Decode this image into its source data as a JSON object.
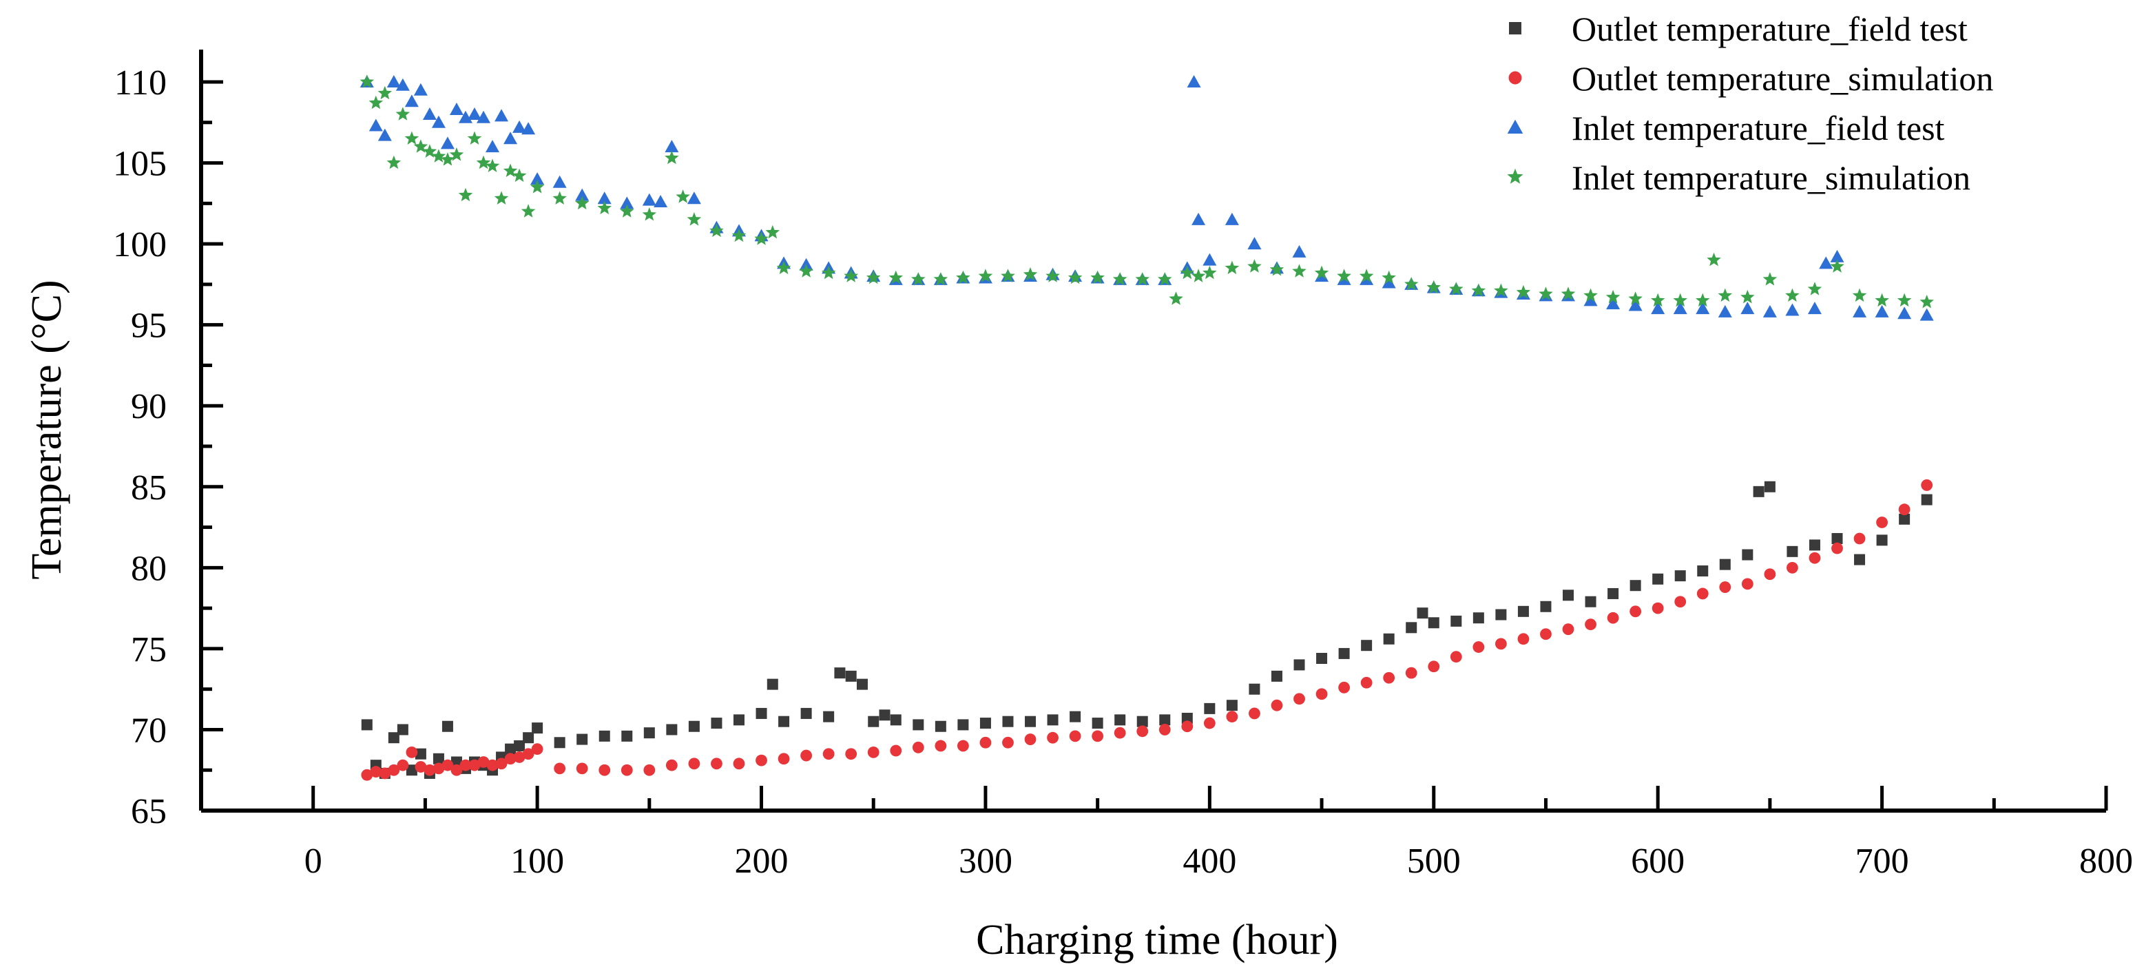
{
  "chart_data": {
    "type": "scatter",
    "title": "",
    "xlabel": "Charging time (hour)",
    "ylabel": "Temperature (°C)",
    "xlim": [
      -50,
      800
    ],
    "ylim": [
      65,
      112
    ],
    "xticks": [
      0,
      100,
      200,
      300,
      400,
      500,
      600,
      700,
      800
    ],
    "yticks": [
      65,
      70,
      75,
      80,
      85,
      90,
      95,
      100,
      105,
      110
    ],
    "legend_position": "top-right",
    "series": [
      {
        "name": "Outlet temperature_field test",
        "marker": "square",
        "color": "#3a3a3a",
        "x": [
          24,
          28,
          32,
          36,
          40,
          44,
          48,
          52,
          56,
          60,
          64,
          68,
          72,
          76,
          80,
          84,
          88,
          92,
          96,
          100,
          110,
          120,
          130,
          140,
          150,
          160,
          170,
          180,
          190,
          200,
          205,
          210,
          220,
          230,
          235,
          240,
          245,
          250,
          255,
          260,
          270,
          280,
          290,
          300,
          310,
          320,
          330,
          340,
          350,
          360,
          370,
          380,
          390,
          400,
          410,
          420,
          430,
          440,
          450,
          460,
          470,
          480,
          490,
          495,
          500,
          510,
          520,
          530,
          540,
          550,
          560,
          570,
          580,
          590,
          600,
          610,
          620,
          630,
          640,
          645,
          650,
          660,
          670,
          680,
          690,
          700,
          710,
          720
        ],
        "y": [
          70.3,
          67.8,
          67.3,
          69.5,
          70.0,
          67.5,
          68.5,
          67.3,
          68.2,
          70.2,
          68.0,
          67.6,
          68.0,
          67.8,
          67.5,
          68.3,
          68.8,
          69.0,
          69.5,
          70.1,
          69.2,
          69.4,
          69.6,
          69.6,
          69.8,
          70.0,
          70.2,
          70.4,
          70.6,
          71.0,
          72.8,
          70.5,
          71.0,
          70.8,
          73.5,
          73.3,
          72.8,
          70.5,
          70.9,
          70.6,
          70.3,
          70.2,
          70.3,
          70.4,
          70.5,
          70.5,
          70.6,
          70.8,
          70.4,
          70.6,
          70.5,
          70.6,
          70.7,
          71.3,
          71.5,
          72.5,
          73.3,
          74.0,
          74.4,
          74.7,
          75.2,
          75.6,
          76.3,
          77.2,
          76.6,
          76.7,
          76.9,
          77.1,
          77.3,
          77.6,
          78.3,
          77.9,
          78.4,
          78.9,
          79.3,
          79.5,
          79.8,
          80.2,
          80.8,
          84.7,
          85.0,
          81.0,
          81.4,
          81.8,
          80.5,
          81.7,
          83.0,
          84.2
        ]
      },
      {
        "name": "Outlet temperature_simulation",
        "marker": "circle",
        "color": "#e8353a",
        "x": [
          24,
          28,
          32,
          36,
          40,
          44,
          48,
          52,
          56,
          60,
          64,
          68,
          72,
          76,
          80,
          84,
          88,
          92,
          96,
          100,
          110,
          120,
          130,
          140,
          150,
          160,
          170,
          180,
          190,
          200,
          210,
          220,
          230,
          240,
          250,
          260,
          270,
          280,
          290,
          300,
          310,
          320,
          330,
          340,
          350,
          360,
          370,
          380,
          390,
          400,
          410,
          420,
          430,
          440,
          450,
          460,
          470,
          480,
          490,
          500,
          510,
          520,
          530,
          540,
          550,
          560,
          570,
          580,
          590,
          600,
          610,
          620,
          630,
          640,
          650,
          660,
          670,
          680,
          690,
          700,
          710,
          720
        ],
        "y": [
          67.2,
          67.4,
          67.3,
          67.5,
          67.8,
          68.6,
          67.7,
          67.5,
          67.6,
          67.8,
          67.5,
          67.8,
          67.8,
          68.0,
          67.8,
          67.9,
          68.2,
          68.3,
          68.5,
          68.8,
          67.6,
          67.6,
          67.5,
          67.5,
          67.5,
          67.8,
          67.9,
          67.9,
          67.9,
          68.1,
          68.2,
          68.4,
          68.5,
          68.5,
          68.6,
          68.7,
          68.9,
          69.0,
          69.0,
          69.2,
          69.2,
          69.4,
          69.5,
          69.6,
          69.6,
          69.8,
          69.9,
          70.0,
          70.2,
          70.4,
          70.8,
          71.0,
          71.5,
          71.9,
          72.2,
          72.6,
          72.9,
          73.2,
          73.5,
          73.9,
          74.5,
          75.1,
          75.3,
          75.6,
          75.9,
          76.2,
          76.5,
          76.9,
          77.3,
          77.5,
          77.9,
          78.4,
          78.8,
          79.0,
          79.6,
          80.0,
          80.6,
          81.2,
          81.8,
          82.8,
          83.6,
          85.1
        ]
      },
      {
        "name": "Inlet temperature_field test",
        "marker": "triangle",
        "color": "#2e6fd6",
        "x": [
          24,
          28,
          32,
          36,
          40,
          44,
          48,
          52,
          56,
          60,
          64,
          68,
          72,
          76,
          80,
          84,
          88,
          92,
          96,
          100,
          110,
          120,
          130,
          140,
          150,
          155,
          160,
          170,
          180,
          190,
          200,
          210,
          220,
          230,
          240,
          250,
          260,
          270,
          280,
          290,
          300,
          310,
          320,
          330,
          340,
          350,
          360,
          370,
          380,
          390,
          393,
          395,
          400,
          410,
          420,
          430,
          440,
          450,
          460,
          470,
          480,
          490,
          500,
          510,
          520,
          530,
          540,
          550,
          560,
          570,
          580,
          590,
          600,
          610,
          620,
          630,
          640,
          650,
          660,
          670,
          675,
          680,
          690,
          700,
          710,
          720
        ],
        "y": [
          110.0,
          107.3,
          106.7,
          110.0,
          109.8,
          108.8,
          109.5,
          108.0,
          107.5,
          106.2,
          108.3,
          107.8,
          108.0,
          107.8,
          106.0,
          107.9,
          106.5,
          107.2,
          107.1,
          104.0,
          103.8,
          103.0,
          102.8,
          102.5,
          102.7,
          102.6,
          106.0,
          102.8,
          101.0,
          100.8,
          100.5,
          98.8,
          98.7,
          98.5,
          98.2,
          98.0,
          97.8,
          97.8,
          97.8,
          97.9,
          97.9,
          98.0,
          98.0,
          98.1,
          98.0,
          97.9,
          97.8,
          97.8,
          97.8,
          98.5,
          110.0,
          101.5,
          99.0,
          101.5,
          100.0,
          98.5,
          99.5,
          98.0,
          97.8,
          97.8,
          97.6,
          97.5,
          97.3,
          97.2,
          97.1,
          97.0,
          96.9,
          96.8,
          96.8,
          96.5,
          96.3,
          96.2,
          96.0,
          96.0,
          96.0,
          95.8,
          96.0,
          95.8,
          95.9,
          96.0,
          98.8,
          99.2,
          95.8,
          95.8,
          95.7,
          95.6
        ]
      },
      {
        "name": "Inlet temperature_simulation",
        "marker": "star",
        "color": "#3aa34a",
        "x": [
          24,
          28,
          32,
          36,
          40,
          44,
          48,
          52,
          56,
          60,
          64,
          68,
          72,
          76,
          80,
          84,
          88,
          92,
          96,
          100,
          110,
          120,
          130,
          140,
          150,
          160,
          165,
          170,
          180,
          190,
          200,
          205,
          210,
          220,
          230,
          240,
          250,
          260,
          270,
          280,
          290,
          300,
          310,
          320,
          330,
          340,
          350,
          360,
          370,
          380,
          385,
          390,
          395,
          400,
          410,
          420,
          430,
          440,
          450,
          460,
          470,
          480,
          490,
          500,
          510,
          520,
          530,
          540,
          550,
          560,
          570,
          580,
          590,
          600,
          610,
          620,
          625,
          630,
          640,
          650,
          660,
          670,
          680,
          690,
          700,
          710,
          720
        ],
        "y": [
          110.0,
          108.7,
          109.3,
          105.0,
          108.0,
          106.5,
          106.0,
          105.7,
          105.4,
          105.2,
          105.5,
          103.0,
          106.5,
          105.0,
          104.8,
          102.8,
          104.5,
          104.2,
          102.0,
          103.5,
          102.8,
          102.5,
          102.2,
          102.0,
          101.8,
          105.3,
          102.9,
          101.5,
          100.8,
          100.5,
          100.3,
          100.7,
          98.5,
          98.3,
          98.2,
          98.0,
          97.9,
          97.9,
          97.8,
          97.8,
          97.9,
          98.0,
          98.0,
          98.1,
          98.0,
          97.9,
          97.9,
          97.8,
          97.8,
          97.8,
          96.6,
          98.2,
          98.0,
          98.2,
          98.5,
          98.6,
          98.4,
          98.3,
          98.2,
          98.0,
          98.0,
          97.9,
          97.5,
          97.3,
          97.2,
          97.1,
          97.1,
          97.0,
          96.9,
          96.9,
          96.8,
          96.7,
          96.6,
          96.5,
          96.5,
          96.5,
          99.0,
          96.8,
          96.7,
          97.8,
          96.8,
          97.2,
          98.6,
          96.8,
          96.5,
          96.5,
          96.4
        ]
      }
    ]
  }
}
